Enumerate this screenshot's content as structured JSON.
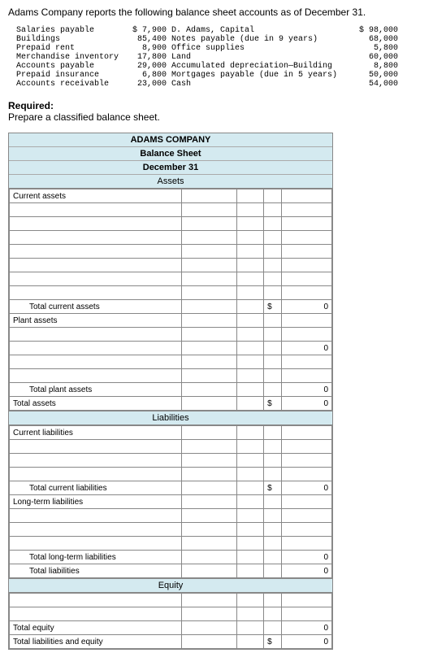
{
  "header": "Adams Company reports the following balance sheet accounts as of December 31.",
  "accounts_left": [
    {
      "label": "Salaries payable",
      "value": "$ 7,900"
    },
    {
      "label": "Buildings",
      "value": "85,400"
    },
    {
      "label": "Prepaid rent",
      "value": "8,900"
    },
    {
      "label": "Merchandise inventory",
      "value": "17,800"
    },
    {
      "label": "Accounts payable",
      "value": "29,000"
    },
    {
      "label": "Prepaid insurance",
      "value": "6,800"
    },
    {
      "label": "Accounts receivable",
      "value": "23,000"
    }
  ],
  "accounts_right": [
    {
      "label": "D. Adams, Capital",
      "value": "$ 98,000"
    },
    {
      "label": "Notes payable (due in 9 years)",
      "value": "68,000"
    },
    {
      "label": "Office supplies",
      "value": "5,800"
    },
    {
      "label": "Land",
      "value": "60,000"
    },
    {
      "label": "Accumulated depreciation—Building",
      "value": "8,800"
    },
    {
      "label": "Mortgages payable (due in 5 years)",
      "value": "50,000"
    },
    {
      "label": "Cash",
      "value": "54,000"
    }
  ],
  "required_label": "Required:",
  "required_text": "Prepare a classified balance sheet.",
  "sheet": {
    "company": "ADAMS COMPANY",
    "title": "Balance Sheet",
    "date": "December 31",
    "sections": {
      "assets": "Assets",
      "liabilities": "Liabilities",
      "equity": "Equity"
    },
    "rows": {
      "current_assets": "Current assets",
      "total_current_assets": "Total current assets",
      "plant_assets": "Plant assets",
      "total_plant_assets": "Total plant assets",
      "total_assets": "Total assets",
      "current_liabilities": "Current liabilities",
      "total_current_liabilities": "Total current liabilities",
      "long_term_liabilities": "Long-term liabilities",
      "total_long_term_liabilities": "Total long-term liabilities",
      "total_liabilities": "Total liabilities",
      "total_equity": "Total equity",
      "total_liab_equity": "Total liabilities and equity"
    },
    "zero": "0",
    "dollar": "$"
  }
}
